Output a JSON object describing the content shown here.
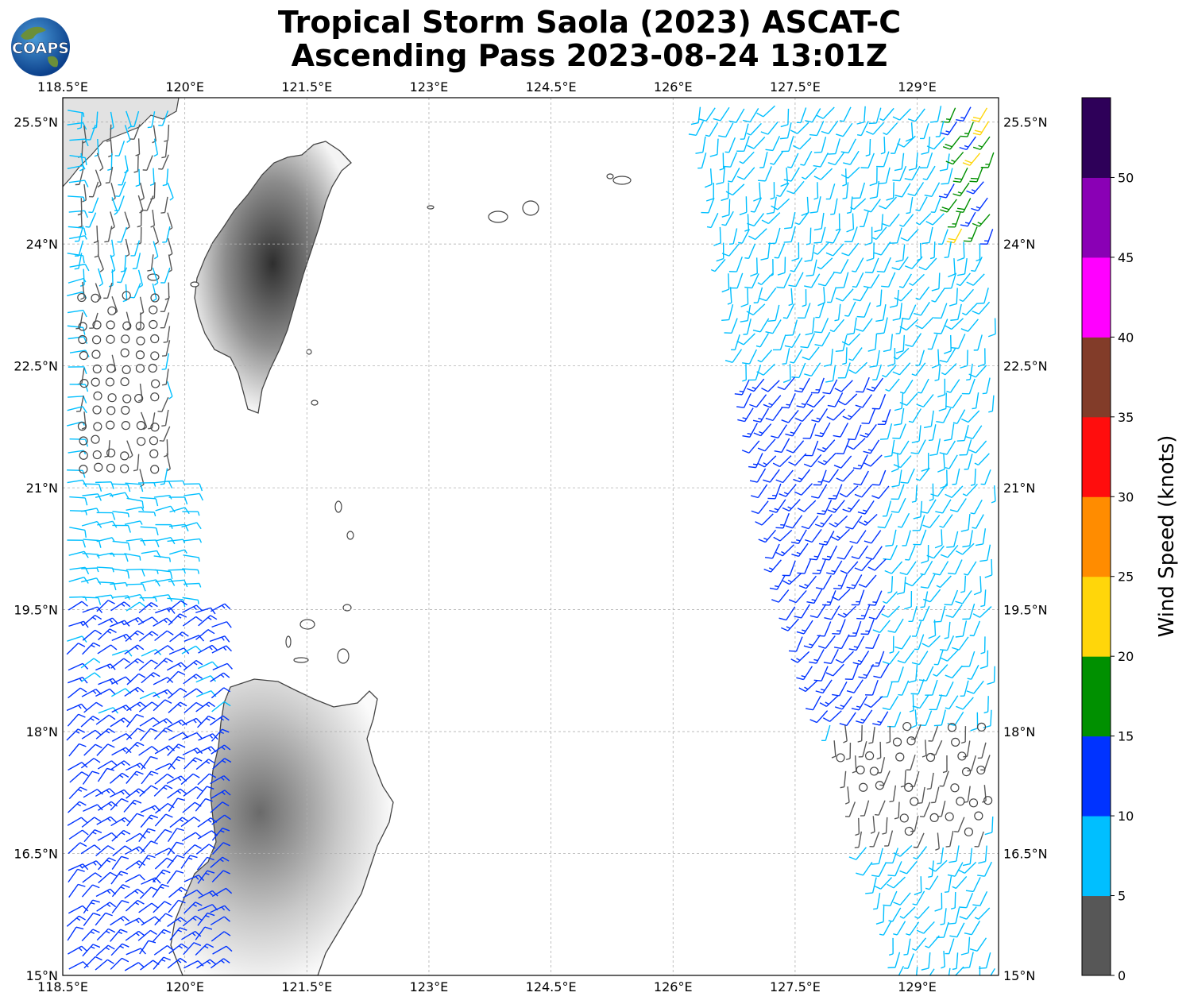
{
  "title": {
    "line1": "Tropical Storm Saola (2023) ASCAT-C",
    "line2": "Ascending Pass 2023-08-24 13:01Z"
  },
  "logo": {
    "text": "COAPS",
    "icon": "globe-logo-icon"
  },
  "map": {
    "lon_range": [
      118.5,
      130.0
    ],
    "lat_range": [
      15.0,
      25.8
    ],
    "lon_ticks": [
      "118.5°E",
      "120°E",
      "121.5°E",
      "123°E",
      "124.5°E",
      "126°E",
      "127.5°E",
      "129°E"
    ],
    "lat_ticks": [
      "25.5°N",
      "24°N",
      "22.5°N",
      "21°N",
      "19.5°N",
      "18°N",
      "16.5°N",
      "15°N"
    ],
    "gridlines": true,
    "land_features": [
      "Taiwan",
      "Luzon",
      "Batanes islands",
      "Ryukyu islands"
    ],
    "swaths": [
      "west swath",
      "east swath"
    ]
  },
  "colorbar": {
    "label": "Wind Speed (knots)",
    "ticks": [
      "0",
      "5",
      "10",
      "15",
      "20",
      "25",
      "30",
      "35",
      "40",
      "45",
      "50"
    ],
    "colors": [
      "#575757",
      "#00bfff",
      "#0033ff",
      "#009000",
      "#ffd60a",
      "#ff8c00",
      "#ff0d0d",
      "#823c29",
      "#ff00ff",
      "#8a00b5",
      "#2e0059"
    ]
  }
}
